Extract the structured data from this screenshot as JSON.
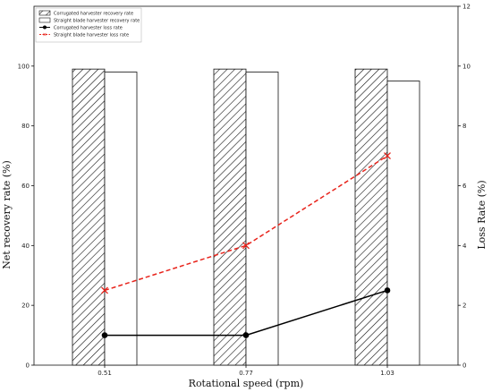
{
  "chart_data": {
    "type": "bar",
    "categories": [
      "0.51",
      "0.77",
      "1.03"
    ],
    "xlabel": "Rotational speed (rpm)",
    "ylabel": "Net recovery rate (%)",
    "y2label": "Loss Rate (%)",
    "ylim": [
      0,
      120
    ],
    "y2lim": [
      0,
      12
    ],
    "yticks": [
      0,
      20,
      40,
      60,
      80,
      100
    ],
    "y2ticks": [
      0,
      2,
      4,
      6,
      8,
      10,
      12
    ],
    "grid": false,
    "legend_position": "top-left",
    "bar_series": [
      {
        "name": "Corrugated harvester recovery rate",
        "values": [
          99,
          99,
          99
        ],
        "pattern": "hatched"
      },
      {
        "name": "Straight blade harvester recovery rate",
        "values": [
          98,
          98,
          95
        ],
        "pattern": "white"
      }
    ],
    "line_series": [
      {
        "name": "Corrugated harvester loss rate",
        "values": [
          1,
          1,
          2.5
        ],
        "axis": "right",
        "color": "#000000",
        "style": "solid",
        "marker": "circle"
      },
      {
        "name": "Straight blade harvester loss rate",
        "values": [
          2.5,
          4,
          7
        ],
        "axis": "right",
        "color": "#e8231b",
        "style": "dashed",
        "marker": "x"
      }
    ]
  }
}
